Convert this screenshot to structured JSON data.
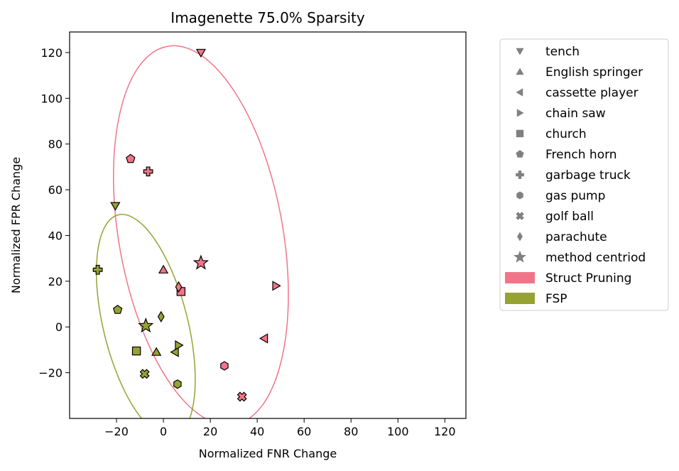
{
  "chart_data": {
    "type": "scatter",
    "title": "Imagenette 75.0% Sparsity",
    "xlabel": "Normalized FNR Change",
    "ylabel": "Normalized FPR Change",
    "xlim": [
      -40,
      129
    ],
    "ylim": [
      -40,
      129
    ],
    "xticks": [
      -20,
      0,
      20,
      40,
      60,
      80,
      100,
      120
    ],
    "yticks": [
      -20,
      0,
      20,
      40,
      60,
      80,
      100,
      120
    ],
    "xtick_labels": [
      "−20",
      "0",
      "20",
      "40",
      "60",
      "80",
      "100",
      "120"
    ],
    "ytick_labels": [
      "−20",
      "0",
      "20",
      "40",
      "60",
      "80",
      "100",
      "120"
    ],
    "grid": false,
    "legend_position": "outside-right",
    "classes": [
      {
        "name": "tench",
        "marker": "triangle-down"
      },
      {
        "name": "English springer",
        "marker": "triangle-up"
      },
      {
        "name": "cassette player",
        "marker": "triangle-left"
      },
      {
        "name": "chain saw",
        "marker": "triangle-right"
      },
      {
        "name": "church",
        "marker": "square"
      },
      {
        "name": "French horn",
        "marker": "pentagon"
      },
      {
        "name": "garbage truck",
        "marker": "plus"
      },
      {
        "name": "gas pump",
        "marker": "hexagon"
      },
      {
        "name": "golf ball",
        "marker": "x"
      },
      {
        "name": "parachute",
        "marker": "diamond"
      },
      {
        "name": "method centriod",
        "marker": "star"
      }
    ],
    "series": [
      {
        "name": "Struct Pruning",
        "color": "#f07588",
        "points": [
          {
            "class": "tench",
            "x": 16,
            "y": 120
          },
          {
            "class": "English springer",
            "x": 0,
            "y": 25
          },
          {
            "class": "cassette player",
            "x": 43,
            "y": -5
          },
          {
            "class": "chain saw",
            "x": 48,
            "y": 18
          },
          {
            "class": "church",
            "x": 7.5,
            "y": 15.5
          },
          {
            "class": "French horn",
            "x": -14,
            "y": 73.5
          },
          {
            "class": "garbage truck",
            "x": -6.5,
            "y": 68
          },
          {
            "class": "gas pump",
            "x": 26,
            "y": -17
          },
          {
            "class": "golf ball",
            "x": 33.5,
            "y": -30.5
          },
          {
            "class": "parachute",
            "x": 6.5,
            "y": 17.5
          }
        ],
        "centroid": {
          "x": 16,
          "y": 28
        },
        "ellipse": {
          "cx": 16,
          "cy": 40,
          "rx": 35,
          "ry": 84,
          "angle": -10
        }
      },
      {
        "name": "FSP",
        "color": "#96a232",
        "points": [
          {
            "class": "tench",
            "x": -20.5,
            "y": 53
          },
          {
            "class": "English springer",
            "x": -3,
            "y": -11
          },
          {
            "class": "cassette player",
            "x": 5,
            "y": -11
          },
          {
            "class": "chain saw",
            "x": 6.5,
            "y": -8
          },
          {
            "class": "church",
            "x": -11.5,
            "y": -10.5
          },
          {
            "class": "French horn",
            "x": -19.5,
            "y": 7.5
          },
          {
            "class": "garbage truck",
            "x": -28,
            "y": 25
          },
          {
            "class": "gas pump",
            "x": 6,
            "y": -25
          },
          {
            "class": "golf ball",
            "x": -8,
            "y": -20.5
          },
          {
            "class": "parachute",
            "x": -1,
            "y": 4.5
          }
        ],
        "centroid": {
          "x": -7.5,
          "y": 0.5
        },
        "ellipse": {
          "cx": -7.5,
          "cy": 0.5,
          "rx": 18,
          "ry": 50,
          "angle": -14
        }
      }
    ]
  }
}
